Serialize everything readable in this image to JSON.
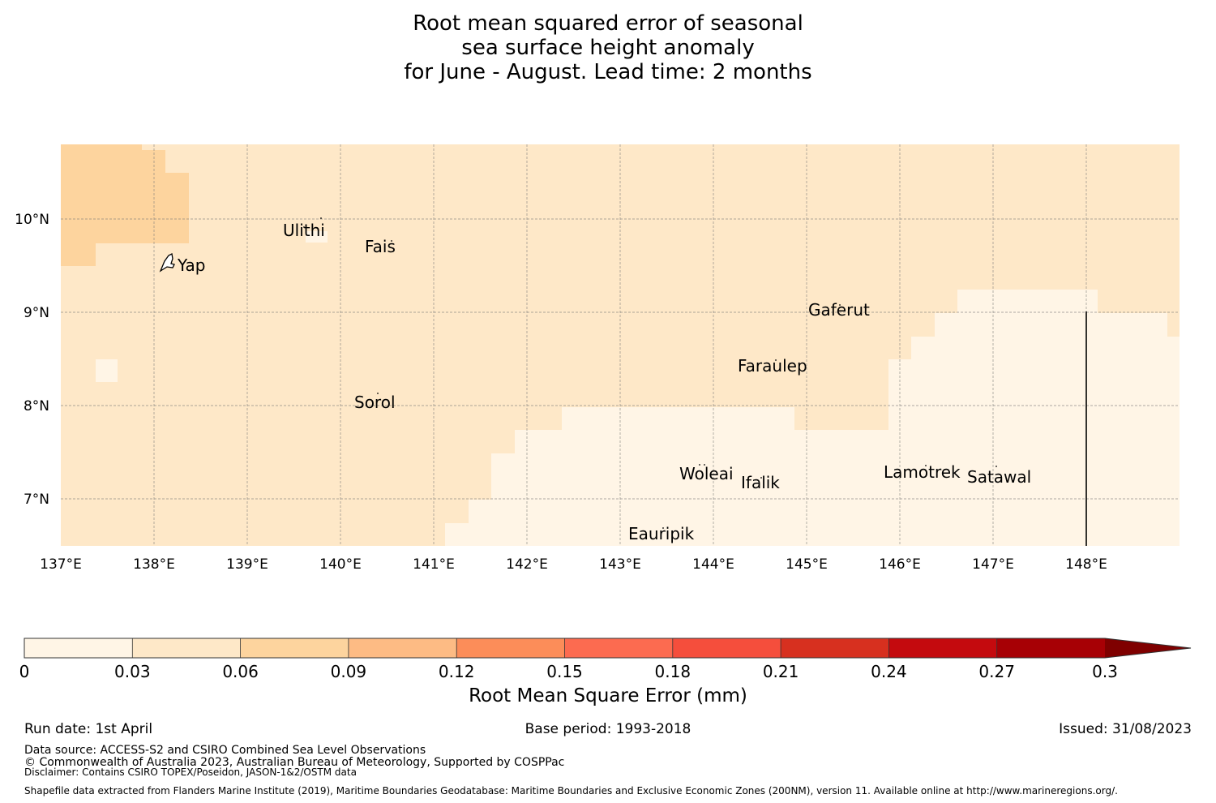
{
  "title": {
    "line1": "Root mean squared error of seasonal",
    "line2": "sea surface height anomaly",
    "line3": "for June - August. Lead time: 2 months"
  },
  "map": {
    "lon_labels": [
      "137°E",
      "138°E",
      "139°E",
      "140°E",
      "141°E",
      "142°E",
      "143°E",
      "144°E",
      "145°E",
      "146°E",
      "147°E",
      "148°E"
    ],
    "lat_labels": [
      "10°N",
      "9°N",
      "8°N",
      "7°N"
    ],
    "places": [
      {
        "name": "Ulithi"
      },
      {
        "name": "Fais"
      },
      {
        "name": "Yap"
      },
      {
        "name": "Gaferut"
      },
      {
        "name": "Faraulep"
      },
      {
        "name": "Sorol"
      },
      {
        "name": "Woleai"
      },
      {
        "name": "Ifalik"
      },
      {
        "name": "Lamotrek"
      },
      {
        "name": "Satawal"
      },
      {
        "name": "Eauripik"
      }
    ],
    "colors": {
      "bin1": "#fff5e6",
      "bin2": "#fee8c8",
      "bin3": "#fdd49e"
    }
  },
  "colorbar": {
    "ticks": [
      "0",
      "0.03",
      "0.06",
      "0.09",
      "0.12",
      "0.15",
      "0.18",
      "0.21",
      "0.24",
      "0.27",
      "0.3"
    ],
    "colors": [
      "#fff5e6",
      "#fee8c8",
      "#fdd49e",
      "#fdbb84",
      "#fc8d59",
      "#fc6b50",
      "#f54e3c",
      "#d7301f",
      "#c40a0e",
      "#a70005",
      "#7f0000"
    ],
    "label": "Root Mean Square Error (mm)"
  },
  "footer": {
    "run_date": "Run date: 1st April",
    "base_period": "Base period: 1993-2018",
    "issued": "Issued: 31/08/2023",
    "data_source": "Data source: ACCESS-S2 and CSIRO Combined Sea Level Observations",
    "copyright": "© Commonwealth of Australia 2023, Australian Bureau of Meteorology, Supported by COSPPac",
    "disclaimer": "Disclaimer: Contains CSIRO TOPEX/Poseidon, JASON-1&2/OSTM data",
    "shapefile": "Shapefile data extracted from Flanders Marine Institute (2019), Maritime Boundaries Geodatabase: Maritime Boundaries and Exclusive Economic Zones (200NM), version 11. Available online at http://www.marineregions.org/."
  }
}
